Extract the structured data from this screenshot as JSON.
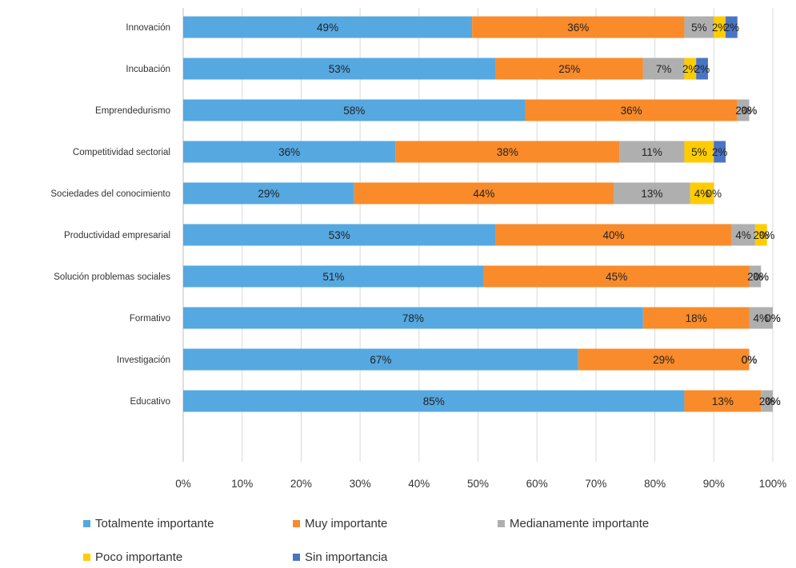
{
  "chart_data": {
    "type": "bar",
    "orientation": "horizontal",
    "stacked": "percent",
    "categories": [
      "Innovación",
      "Incubación",
      "Emprendedurismo",
      "Competitividad sectorial",
      "Sociedades del conocimiento",
      "Productividad empresarial",
      "Solución problemas sociales",
      "Formativo",
      "Investigación",
      "Educativo"
    ],
    "series": [
      {
        "name": "Totalmente importante",
        "color": "#56A8E1",
        "values": [
          49,
          53,
          58,
          36,
          29,
          53,
          51,
          78,
          67,
          85
        ],
        "labels": [
          "49%",
          "53%",
          "58%",
          "36%",
          "29%",
          "53%",
          "51%",
          "78%",
          "67%",
          "85%"
        ]
      },
      {
        "name": "Muy importante",
        "color": "#F98B2A",
        "values": [
          36,
          25,
          36,
          38,
          44,
          40,
          45,
          18,
          29,
          13
        ],
        "labels": [
          "36%",
          "25%",
          "36%",
          "38%",
          "44%",
          "40%",
          "45%",
          "18%",
          "29%",
          "13%"
        ]
      },
      {
        "name": "Medianamente importante",
        "color": "#AFAFAF",
        "values": [
          5,
          7,
          2,
          11,
          13,
          4,
          2,
          4,
          0,
          2
        ],
        "labels": [
          "5%",
          "7%",
          "2%",
          "11%",
          "13%",
          "4%",
          "2%",
          "4%",
          "0%",
          "2%"
        ]
      },
      {
        "name": "Poco importante",
        "color": "#FFCC00",
        "values": [
          2,
          2,
          0,
          5,
          4,
          2,
          0,
          0,
          0,
          0
        ],
        "labels": [
          "2%",
          "2%",
          "0%",
          "5%",
          "4%",
          "2%",
          "0%",
          "0%",
          "0%",
          "0%"
        ]
      },
      {
        "name": "Sin importancia",
        "color": "#4A74C4",
        "values": [
          2,
          2,
          0,
          2,
          0,
          0,
          0,
          0,
          0,
          0
        ],
        "labels": [
          "2%",
          "2%",
          "0%",
          "2%",
          "0%",
          "0%",
          "0%",
          "0%",
          "0%",
          "0%"
        ]
      }
    ],
    "xlim": [
      0,
      100
    ],
    "x_ticks": [
      "0%",
      "10%",
      "20%",
      "30%",
      "40%",
      "50%",
      "60%",
      "70%",
      "80%",
      "90%",
      "100%"
    ],
    "grid": true,
    "legend_position": "bottom"
  }
}
